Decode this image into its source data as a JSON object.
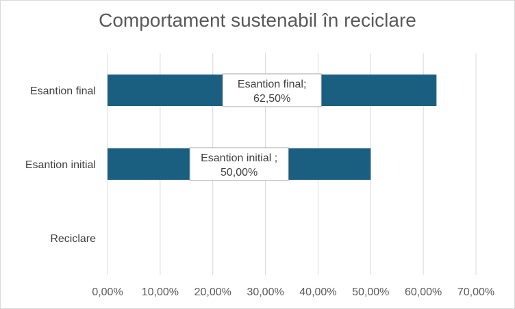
{
  "chart_data": {
    "type": "bar",
    "orientation": "horizontal",
    "title": "Comportament sustenabil în reciclare",
    "categories": [
      "Reciclare",
      "Esantion initial",
      "Esantion final"
    ],
    "values": [
      null,
      0.5,
      0.625
    ],
    "data_labels": [
      null,
      {
        "series_text": "Esantion initial ;",
        "value_text": "50,00%"
      },
      {
        "series_text": "Esantion final;",
        "value_text": "62,50%"
      }
    ],
    "xlim": [
      0,
      0.7
    ],
    "xticks": [
      0,
      0.1,
      0.2,
      0.3,
      0.4,
      0.5,
      0.6,
      0.7
    ],
    "xtick_labels": [
      "0,00%",
      "10,00%",
      "20,00%",
      "30,00%",
      "40,00%",
      "50,00%",
      "60,00%",
      "70,00%"
    ],
    "grid": "vertical",
    "bar_color": "#1a5f80",
    "legend": "none"
  }
}
